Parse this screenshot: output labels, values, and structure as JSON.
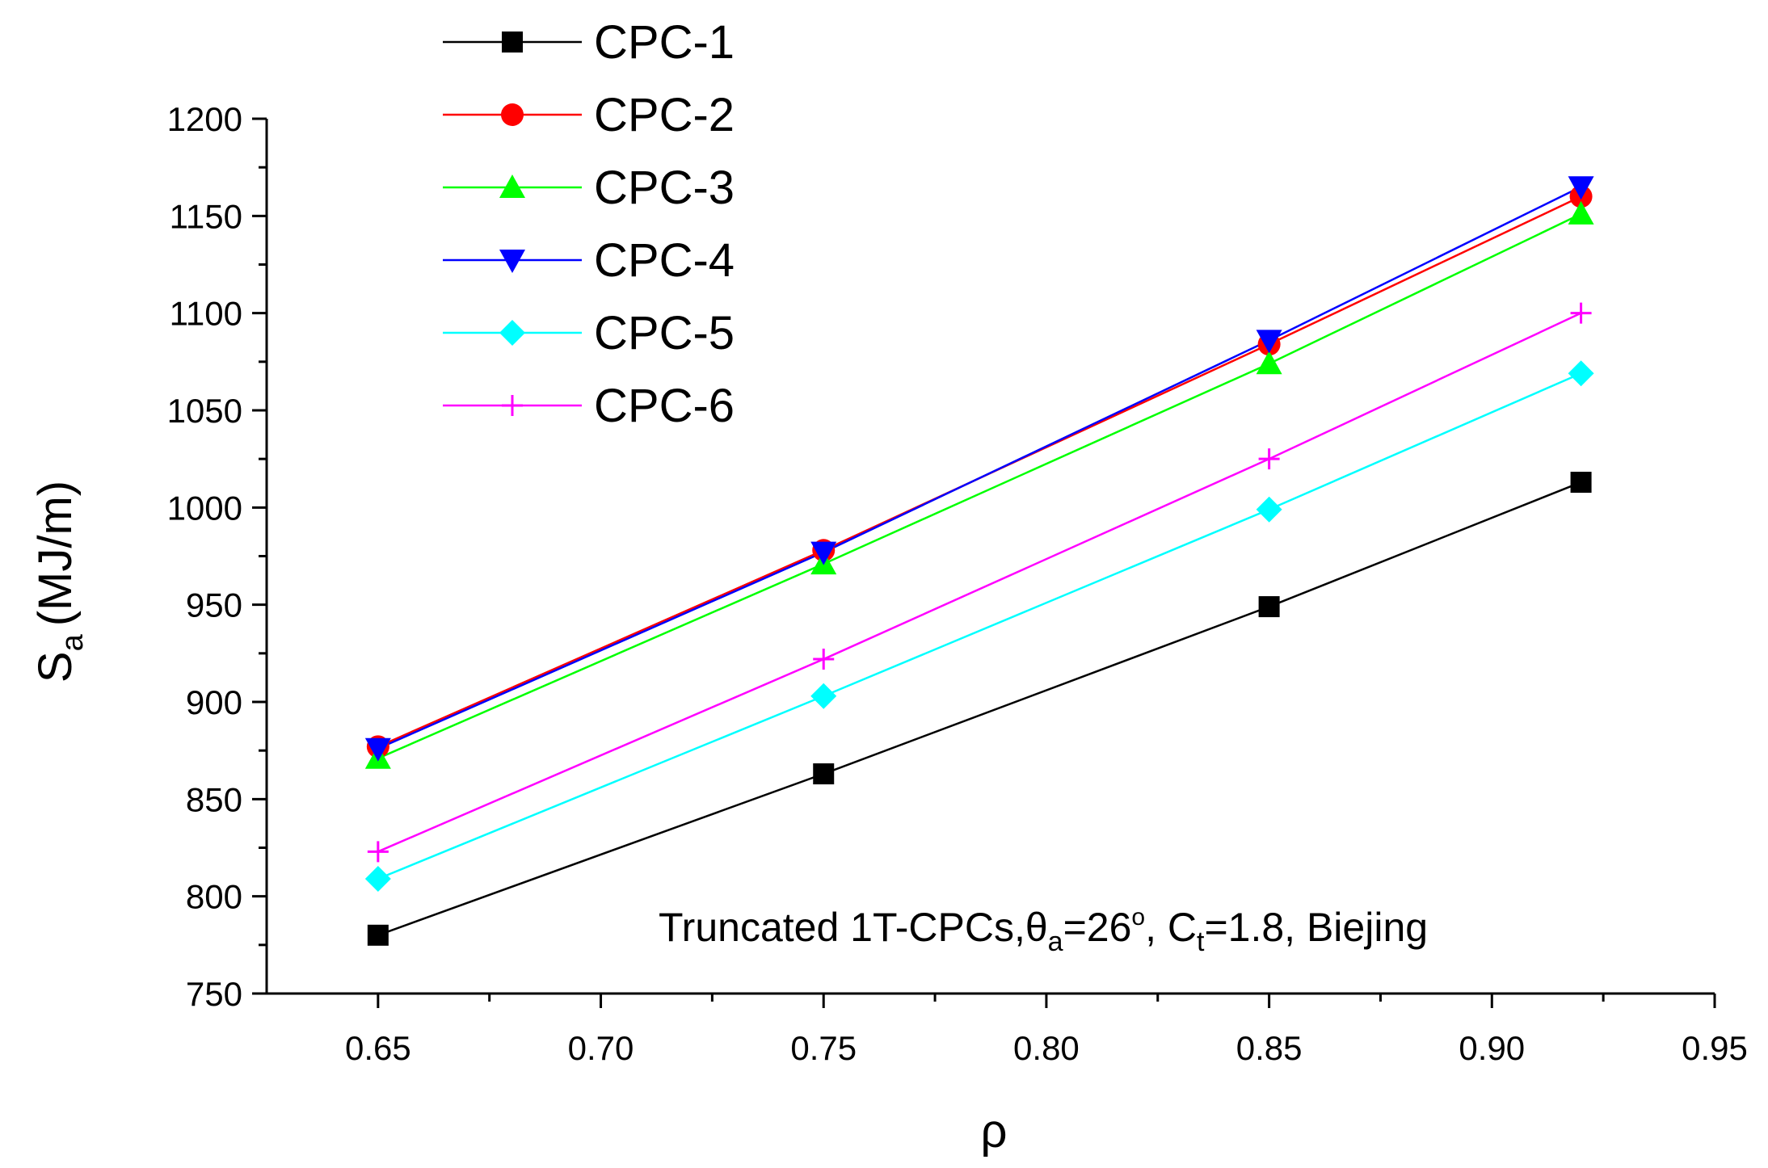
{
  "chart_data": {
    "type": "line",
    "title": "",
    "xlabel": "ρ",
    "ylabel": "S",
    "ylabel_sub": "a",
    "ylabel_unit": "(MJ/m)",
    "xlim": [
      0.625,
      0.95
    ],
    "ylim": [
      750,
      1200
    ],
    "x_ticks": [
      0.65,
      0.7,
      0.75,
      0.8,
      0.85,
      0.9,
      0.95
    ],
    "x_tick_labels": [
      "0.65",
      "0.70",
      "0.75",
      "0.80",
      "0.85",
      "0.90",
      "0.95"
    ],
    "y_ticks": [
      750,
      800,
      850,
      900,
      950,
      1000,
      1050,
      1100,
      1150,
      1200
    ],
    "y_tick_labels": [
      "750",
      "800",
      "850",
      "900",
      "950",
      "1000",
      "1050",
      "1100",
      "1150",
      "1200"
    ],
    "x": [
      0.65,
      0.75,
      0.85,
      0.92
    ],
    "series": [
      {
        "name": "CPC-1",
        "color": "#000000",
        "marker": "square",
        "values": [
          780,
          863,
          949,
          1013
        ]
      },
      {
        "name": "CPC-2",
        "color": "#ff0000",
        "marker": "circle",
        "values": [
          877,
          978,
          1084,
          1160
        ]
      },
      {
        "name": "CPC-3",
        "color": "#00ff00",
        "marker": "triangle-up",
        "values": [
          871,
          971,
          1074,
          1151
        ]
      },
      {
        "name": "CPC-4",
        "color": "#0000ff",
        "marker": "triangle-down",
        "values": [
          876,
          977,
          1086,
          1165
        ]
      },
      {
        "name": "CPC-5",
        "color": "#00ffff",
        "marker": "diamond",
        "values": [
          809,
          903,
          999,
          1069
        ]
      },
      {
        "name": "CPC-6",
        "color": "#ff00ff",
        "marker": "plus",
        "values": [
          823,
          922,
          1025,
          1100
        ]
      }
    ],
    "legend_position": "top-left",
    "annotation": {
      "part1": "Truncated 1T-CPCs,",
      "theta": "θ",
      "theta_sub": "a",
      "part2": "=26",
      "degree": "o",
      "part3": ", C",
      "c_sub": "t",
      "part4": "=1.8, Biejing"
    }
  }
}
